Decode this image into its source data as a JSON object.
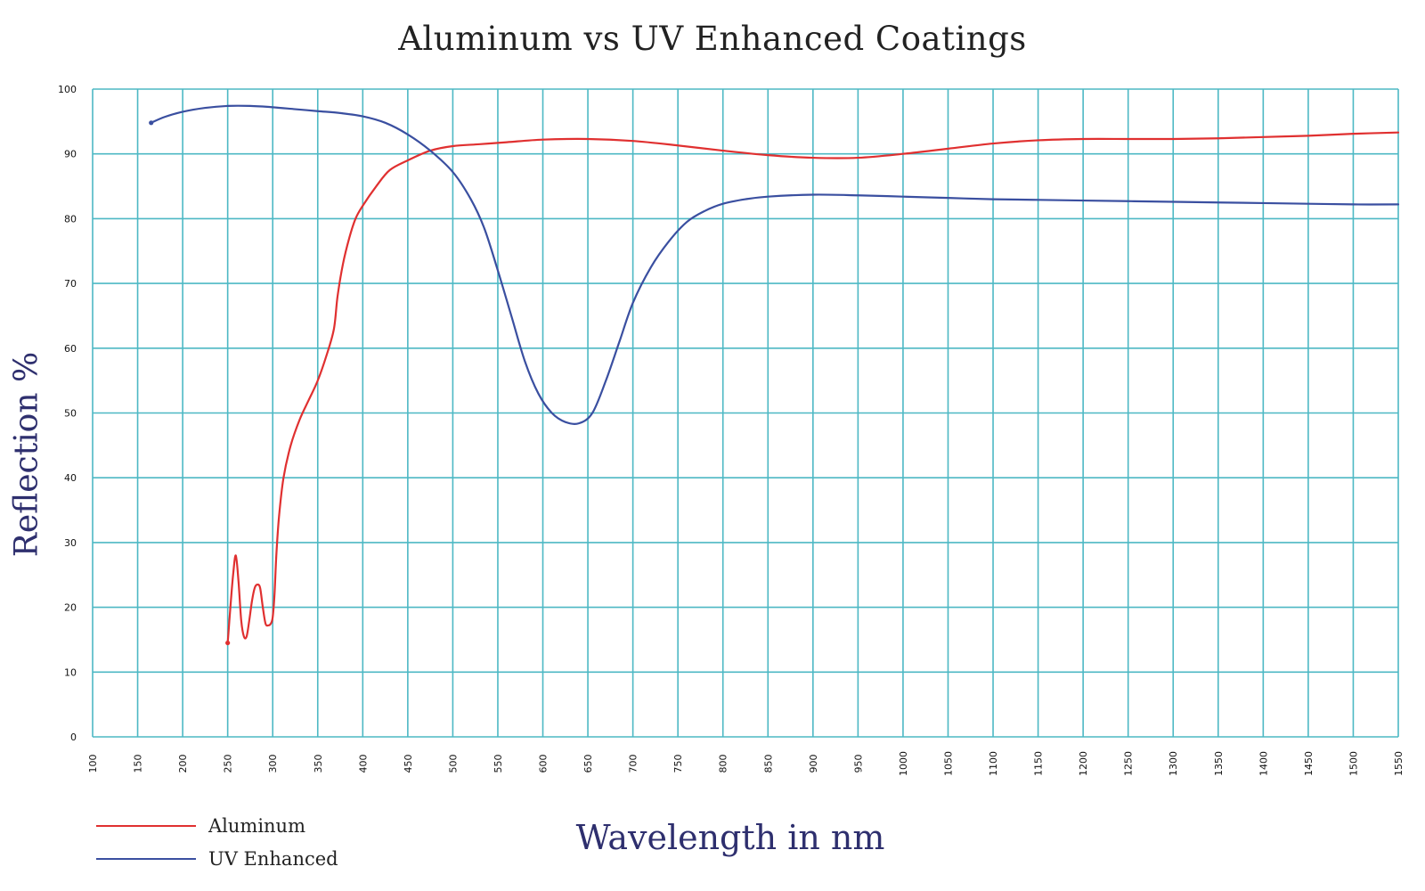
{
  "chart_data": {
    "type": "line",
    "title": "Aluminum vs UV Enhanced Coatings",
    "xlabel": "Wavelength in nm",
    "ylabel": "Reflection %",
    "xlim": [
      100,
      1550
    ],
    "ylim": [
      0,
      100
    ],
    "x_ticks": [
      100,
      150,
      200,
      250,
      300,
      350,
      400,
      450,
      500,
      550,
      600,
      650,
      700,
      750,
      800,
      850,
      900,
      950,
      1000,
      1050,
      1100,
      1150,
      1200,
      1250,
      1300,
      1350,
      1400,
      1450,
      1500,
      1550
    ],
    "y_ticks": [
      0,
      10,
      20,
      30,
      40,
      50,
      60,
      70,
      80,
      90,
      100
    ],
    "grid": true,
    "grid_color": "#4db8c4",
    "legend_position": "bottom-left",
    "series": [
      {
        "name": "Aluminum",
        "color": "#e03030",
        "points": [
          [
            250,
            14.5
          ],
          [
            253,
            20
          ],
          [
            256,
            25
          ],
          [
            259,
            28
          ],
          [
            262,
            24
          ],
          [
            265,
            18
          ],
          [
            268,
            15.5
          ],
          [
            271,
            15.5
          ],
          [
            274,
            18
          ],
          [
            277,
            21
          ],
          [
            280,
            23
          ],
          [
            283,
            23.5
          ],
          [
            286,
            23
          ],
          [
            289,
            20
          ],
          [
            292,
            17.5
          ],
          [
            295,
            17.2
          ],
          [
            298,
            17.5
          ],
          [
            300,
            18.5
          ],
          [
            302,
            22
          ],
          [
            304,
            28
          ],
          [
            307,
            34
          ],
          [
            312,
            40
          ],
          [
            320,
            45
          ],
          [
            330,
            49
          ],
          [
            340,
            52
          ],
          [
            350,
            55
          ],
          [
            360,
            59
          ],
          [
            368,
            63
          ],
          [
            372,
            68
          ],
          [
            378,
            73
          ],
          [
            385,
            77
          ],
          [
            392,
            80
          ],
          [
            400,
            82
          ],
          [
            415,
            85
          ],
          [
            430,
            87.5
          ],
          [
            450,
            89
          ],
          [
            475,
            90.5
          ],
          [
            500,
            91.2
          ],
          [
            530,
            91.5
          ],
          [
            560,
            91.8
          ],
          [
            600,
            92.2
          ],
          [
            650,
            92.3
          ],
          [
            700,
            92
          ],
          [
            750,
            91.3
          ],
          [
            800,
            90.5
          ],
          [
            850,
            89.8
          ],
          [
            900,
            89.4
          ],
          [
            950,
            89.4
          ],
          [
            1000,
            90
          ],
          [
            1050,
            90.8
          ],
          [
            1100,
            91.6
          ],
          [
            1150,
            92.1
          ],
          [
            1200,
            92.3
          ],
          [
            1250,
            92.3
          ],
          [
            1300,
            92.3
          ],
          [
            1350,
            92.4
          ],
          [
            1400,
            92.6
          ],
          [
            1450,
            92.8
          ],
          [
            1500,
            93.1
          ],
          [
            1550,
            93.3
          ]
        ]
      },
      {
        "name": "UV Enhanced",
        "color": "#3a4fa0",
        "points": [
          [
            165,
            94.8
          ],
          [
            180,
            95.7
          ],
          [
            200,
            96.5
          ],
          [
            225,
            97.1
          ],
          [
            250,
            97.4
          ],
          [
            275,
            97.4
          ],
          [
            300,
            97.2
          ],
          [
            325,
            96.9
          ],
          [
            350,
            96.6
          ],
          [
            375,
            96.3
          ],
          [
            400,
            95.8
          ],
          [
            425,
            94.8
          ],
          [
            450,
            93
          ],
          [
            475,
            90.5
          ],
          [
            500,
            87.2
          ],
          [
            520,
            83
          ],
          [
            535,
            78.5
          ],
          [
            550,
            72
          ],
          [
            565,
            65
          ],
          [
            580,
            58
          ],
          [
            595,
            53
          ],
          [
            610,
            50
          ],
          [
            625,
            48.6
          ],
          [
            640,
            48.4
          ],
          [
            655,
            50
          ],
          [
            670,
            55
          ],
          [
            685,
            61
          ],
          [
            700,
            67
          ],
          [
            720,
            72.5
          ],
          [
            740,
            76.5
          ],
          [
            760,
            79.5
          ],
          [
            780,
            81.2
          ],
          [
            800,
            82.3
          ],
          [
            825,
            83
          ],
          [
            850,
            83.4
          ],
          [
            900,
            83.7
          ],
          [
            950,
            83.6
          ],
          [
            1000,
            83.4
          ],
          [
            1050,
            83.2
          ],
          [
            1100,
            83
          ],
          [
            1150,
            82.9
          ],
          [
            1200,
            82.8
          ],
          [
            1250,
            82.7
          ],
          [
            1300,
            82.6
          ],
          [
            1350,
            82.5
          ],
          [
            1400,
            82.4
          ],
          [
            1450,
            82.3
          ],
          [
            1500,
            82.2
          ],
          [
            1550,
            82.2
          ]
        ]
      }
    ]
  }
}
